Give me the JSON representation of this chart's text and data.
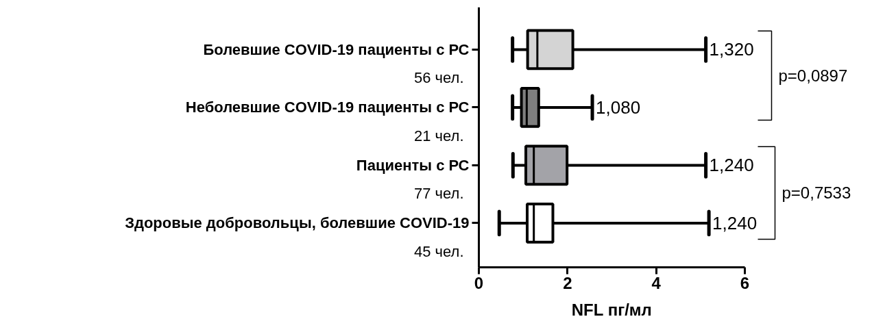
{
  "chart_data": {
    "type": "box",
    "orientation": "horizontal",
    "xlabel": "NFL пг/мл",
    "categories": [
      "Болевшие COVID-19 пациенты с РС",
      "Неболевшие COVID-19 пациенты с РС",
      "Пациенты с РС",
      "Здоровые добровольцы, болевшие COVID-19"
    ],
    "boxes": [
      {
        "low": 0.76,
        "q1": 1.1,
        "median": 1.32,
        "q3": 2.12,
        "high": 5.12
      },
      {
        "low": 0.76,
        "q1": 0.96,
        "median": 1.08,
        "q3": 1.35,
        "high": 2.56
      },
      {
        "low": 0.77,
        "q1": 1.06,
        "median": 1.24,
        "q3": 1.99,
        "high": 5.12
      },
      {
        "low": 0.46,
        "q1": 1.09,
        "median": 1.24,
        "q3": 1.67,
        "high": 5.19
      }
    ],
    "colors": [
      "#d4d4d4",
      "#7f7f7f",
      "#a3a3a8",
      "#ffffff"
    ],
    "value_labels": [
      "1,320",
      "1,080",
      "1,240",
      "1,240"
    ],
    "annotations": [
      "56 чел.",
      "21 чел.",
      "77 чел.",
      "45 чел.",
      "p=0,0897",
      "p=0,7533"
    ],
    "xlim": [
      0,
      6
    ],
    "xticks": [
      0,
      2,
      4,
      6
    ]
  }
}
